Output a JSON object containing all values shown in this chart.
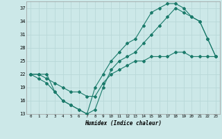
{
  "xlabel": "Humidex (Indice chaleur)",
  "bg_color": "#cce8e8",
  "grid_color": "#b8d8d8",
  "line_color": "#1a7a6a",
  "xlim": [
    -0.5,
    23.5
  ],
  "ylim": [
    13,
    38.5
  ],
  "xticks": [
    0,
    1,
    2,
    3,
    4,
    5,
    6,
    7,
    8,
    9,
    10,
    11,
    12,
    13,
    14,
    15,
    16,
    17,
    18,
    19,
    20,
    21,
    22,
    23
  ],
  "yticks": [
    13,
    16,
    19,
    22,
    25,
    28,
    31,
    34,
    37
  ],
  "line1_x": [
    0,
    1,
    2,
    3,
    4,
    5,
    6,
    7,
    8,
    9,
    10,
    11,
    12,
    13,
    14,
    15,
    16,
    17,
    18,
    19,
    20,
    21,
    22,
    23
  ],
  "line1_y": [
    22,
    21,
    20,
    18,
    16,
    15,
    14,
    13,
    19,
    22,
    25,
    27,
    29,
    30,
    33,
    36,
    37,
    38,
    38,
    37,
    35,
    34,
    30,
    26
  ],
  "line2_x": [
    0,
    1,
    2,
    3,
    4,
    5,
    6,
    7,
    8,
    9,
    10,
    11,
    12,
    13,
    14,
    15,
    16,
    17,
    18,
    19,
    20,
    21,
    22,
    23
  ],
  "line2_y": [
    22,
    22,
    22,
    18,
    16,
    15,
    14,
    13,
    14,
    19,
    23,
    25,
    26,
    27,
    29,
    31,
    33,
    35,
    37,
    36,
    35,
    34,
    30,
    26
  ],
  "line3_x": [
    0,
    1,
    2,
    3,
    4,
    5,
    6,
    7,
    8,
    9,
    10,
    11,
    12,
    13,
    14,
    15,
    16,
    17,
    18,
    19,
    20,
    21,
    22,
    23
  ],
  "line3_y": [
    22,
    22,
    21,
    20,
    19,
    18,
    18,
    17,
    17,
    20,
    22,
    23,
    24,
    25,
    25,
    26,
    26,
    26,
    27,
    27,
    26,
    26,
    26,
    26
  ]
}
